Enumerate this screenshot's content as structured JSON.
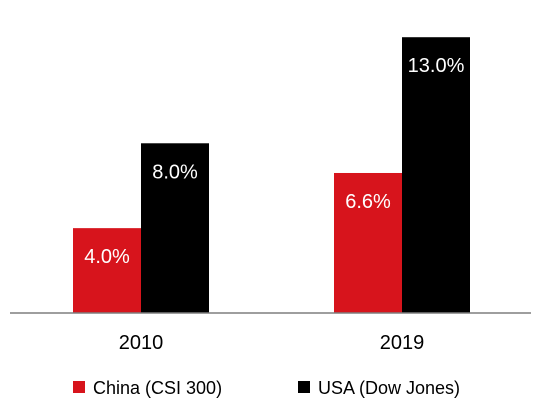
{
  "chart_data": {
    "type": "bar",
    "title": "",
    "xlabel": "",
    "ylabel": "",
    "categories": [
      "2010",
      "2019"
    ],
    "ylim": [
      0,
      14
    ],
    "grid": false,
    "legend_position": "bottom",
    "series": [
      {
        "name": "China (CSI 300)",
        "values": [
          4.0,
          6.6
        ],
        "labels": [
          "4.0%",
          "6.6%"
        ],
        "color": "#d7141c"
      },
      {
        "name": "USA (Dow Jones)",
        "values": [
          8.0,
          13.0
        ],
        "labels": [
          "8.0%",
          "13.0%"
        ],
        "color": "#000000"
      }
    ]
  }
}
